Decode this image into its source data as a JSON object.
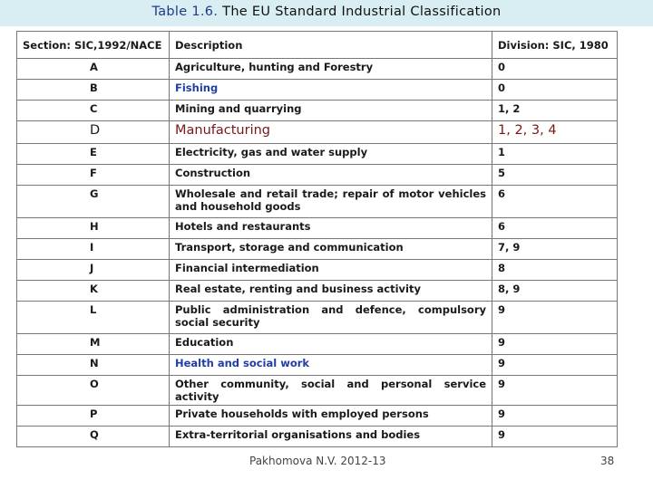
{
  "title": {
    "number": "Table 1.6.",
    "text": "The EU Standard Industrial Classification"
  },
  "table": {
    "headers": [
      "Section: SIC,1992/NACE",
      "Description",
      "Division: SIC, 1980"
    ],
    "rows": [
      {
        "section": "A",
        "description": "Agriculture, hunting and Forestry",
        "division": "0"
      },
      {
        "section": "B",
        "description": "Fishing",
        "division": "0"
      },
      {
        "section": "C",
        "description": "Mining and quarrying",
        "division": "1, 2"
      },
      {
        "section": "D",
        "description": "Manufacturing",
        "division": "1, 2, 3, 4"
      },
      {
        "section": "E",
        "description": "Electricity, gas and water supply",
        "division": "1"
      },
      {
        "section": "F",
        "description": "Construction",
        "division": "5"
      },
      {
        "section": "G",
        "description": "Wholesale and retail trade; repair of motor vehicles and household goods",
        "division": "6"
      },
      {
        "section": "H",
        "description": "Hotels and restaurants",
        "division": "6"
      },
      {
        "section": "I",
        "description": "Transport, storage and communication",
        "division": "7, 9"
      },
      {
        "section": "J",
        "description": "Financial intermediation",
        "division": "8"
      },
      {
        "section": "K",
        "description": "Real estate, renting and business activity",
        "division": "8, 9"
      },
      {
        "section": "L",
        "description": "Public administration and defence, compulsory social security",
        "division": "9"
      },
      {
        "section": "M",
        "description": "Education",
        "division": "9"
      },
      {
        "section": "N",
        "description": "Health and social work",
        "division": "9"
      },
      {
        "section": "O",
        "description": "Other community, social and personal service activity",
        "division": "9"
      },
      {
        "section": "P",
        "description": "Private households with employed persons",
        "division": "9"
      },
      {
        "section": "Q",
        "description": "Extra-territorial organisations and bodies",
        "division": "9"
      }
    ]
  },
  "footer": "Pakhomova N.V. 2012-13",
  "page_number": "38",
  "colors": {
    "title_bar": "#d9eef3",
    "highlight_blue": "#1f3ea8",
    "highlight_red": "#7a1616"
  }
}
